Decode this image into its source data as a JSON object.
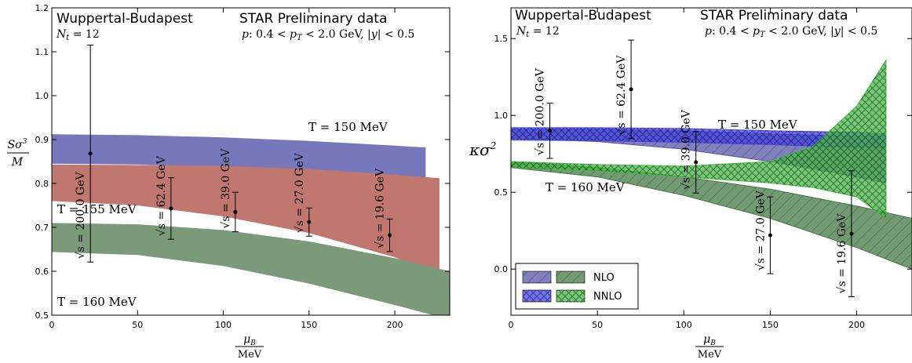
{
  "chart_data": [
    {
      "type": "area",
      "header_left": "Wuppertal-Budapest",
      "header_right": "STAR Preliminary data",
      "nt_label": "N_t = 12",
      "cuts": "p: 0.4 < p_T < 2.0 GeV, |y| < 0.5",
      "xlabel": "μ_B / MeV",
      "ylabel": "Sσ³ / M",
      "xlim": [
        0,
        232
      ],
      "ylim": [
        0.5,
        1.2
      ],
      "xticks": [
        "0",
        "50",
        "100",
        "150",
        "200"
      ],
      "yticks": [
        "0.5",
        "0.6",
        "0.7",
        "0.8",
        "0.9",
        "1.0",
        "1.1",
        "1.2"
      ],
      "bands": [
        {
          "name": "T = 150 MeV",
          "color": "#7777bb",
          "x": [
            0,
            50,
            100,
            150,
            200,
            218
          ],
          "lower": [
            0.845,
            0.843,
            0.838,
            0.83,
            0.818,
            0.813
          ],
          "upper": [
            0.912,
            0.91,
            0.905,
            0.897,
            0.886,
            0.882
          ]
        },
        {
          "name": "T = 155 MeV",
          "color": "#c0776f",
          "x": [
            0,
            50,
            100,
            150,
            200,
            226
          ],
          "lower": [
            0.76,
            0.75,
            0.725,
            0.687,
            0.632,
            0.59
          ],
          "upper": [
            0.843,
            0.842,
            0.84,
            0.833,
            0.82,
            0.812
          ]
        },
        {
          "name": "T = 160 MeV",
          "color": "#7a9a7a",
          "x": [
            0,
            50,
            100,
            150,
            200,
            232
          ],
          "lower": [
            0.644,
            0.637,
            0.612,
            0.572,
            0.523,
            0.49
          ],
          "upper": [
            0.71,
            0.707,
            0.694,
            0.668,
            0.63,
            0.6
          ]
        }
      ],
      "points": [
        {
          "label": "√s = 200.0 GeV",
          "x": 22.5,
          "y": 0.868,
          "err": 0.247
        },
        {
          "label": "√s = 62.4 GeV",
          "x": 69.5,
          "y": 0.743,
          "err": 0.07
        },
        {
          "label": "√s = 39.0 GeV",
          "x": 107,
          "y": 0.735,
          "err": 0.045
        },
        {
          "label": "√s = 27.0 GeV",
          "x": 150,
          "y": 0.712,
          "err": 0.032
        },
        {
          "label": "√s = 19.6 GeV",
          "x": 197,
          "y": 0.682,
          "err": 0.037
        }
      ]
    },
    {
      "type": "area",
      "header_left": "Wuppertal-Budapest",
      "header_right": "STAR Preliminary data",
      "nt_label": "N_t = 12",
      "cuts": "p: 0.4 < p_T < 2.0 GeV, |y| < 0.5",
      "xlabel": "μ_B / MeV",
      "ylabel": "κσ²",
      "xlim": [
        0,
        232
      ],
      "ylim": [
        -0.3,
        1.7
      ],
      "xticks": [
        "0",
        "50",
        "100",
        "150",
        "200"
      ],
      "yticks": [
        "0.0",
        "0.5",
        "1.0",
        "1.5"
      ],
      "legend": {
        "placement": "bottom-left",
        "entries": [
          "NLO",
          "NNLO"
        ]
      },
      "bands": [
        {
          "name": "NLO T = 150 MeV",
          "color": "#5555a5",
          "hatch": "single",
          "x": [
            0,
            50,
            100,
            150,
            200,
            217
          ],
          "lower": [
            0.85,
            0.83,
            0.78,
            0.7,
            0.6,
            0.56
          ],
          "upper": [
            0.91,
            0.91,
            0.9,
            0.88,
            0.865,
            0.86
          ]
        },
        {
          "name": "NNLO T = 150 MeV",
          "color": "#4444ee",
          "hatch": "cross",
          "x": [
            0,
            50,
            100,
            150,
            200,
            217
          ],
          "lower": [
            0.84,
            0.835,
            0.825,
            0.81,
            0.79,
            0.79
          ],
          "upper": [
            0.92,
            0.92,
            0.915,
            0.9,
            0.89,
            0.88
          ]
        },
        {
          "name": "NLO T = 160 MeV",
          "color": "#447a44",
          "hatch": "single",
          "x": [
            0,
            50,
            100,
            150,
            200,
            232
          ],
          "lower": [
            0.66,
            0.6,
            0.48,
            0.33,
            0.14,
            0.0
          ],
          "upper": [
            0.7,
            0.66,
            0.6,
            0.52,
            0.41,
            0.33
          ]
        },
        {
          "name": "NNLO T = 160 MeV",
          "color": "#44bb44",
          "hatch": "cross",
          "x": [
            0,
            50,
            100,
            150,
            175,
            200,
            217
          ],
          "lower": [
            0.66,
            0.64,
            0.6,
            0.56,
            0.53,
            0.47,
            0.33
          ],
          "upper": [
            0.7,
            0.68,
            0.67,
            0.7,
            0.8,
            1.06,
            1.36
          ]
        }
      ],
      "band_labels": [
        {
          "text": "T = 150 MeV",
          "color": "#2222cc"
        },
        {
          "text": "T = 160 MeV",
          "color": "#228822"
        }
      ],
      "points": [
        {
          "label": "√s = 200.0 GeV",
          "x": 22.5,
          "y": 0.9,
          "err": 0.18
        },
        {
          "label": "√s = 62.4 GeV",
          "x": 69.5,
          "y": 1.17,
          "err": 0.32
        },
        {
          "label": "√s = 39.0 GeV",
          "x": 107,
          "y": 0.695,
          "err": 0.2
        },
        {
          "label": "√s = 27.0 GeV",
          "x": 150,
          "y": 0.22,
          "err": 0.25
        },
        {
          "label": "√s = 19.6 GeV",
          "x": 197,
          "y": 0.23,
          "err": 0.41
        }
      ]
    }
  ],
  "left_labels": {
    "t150": "T = 150 MeV",
    "t155": "T = 155 MeV",
    "t160": "T = 160 MeV"
  },
  "legend": {
    "nlo": "NLO",
    "nnlo": "NNLO"
  }
}
